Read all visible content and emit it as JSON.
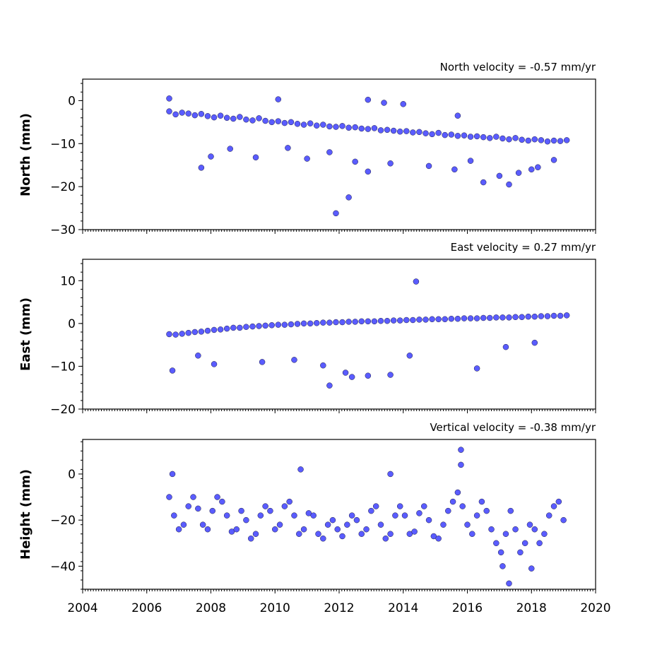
{
  "colors": {
    "marker_fill": "#5a5cff",
    "marker_edge": "#1a1a40",
    "axes": "#000000",
    "background": "#ffffff"
  },
  "chart_data": [
    {
      "type": "scatter",
      "title": "North velocity = -0.57 mm/yr",
      "xlabel": "",
      "ylabel": "North (mm)",
      "xlim": [
        2004,
        2020
      ],
      "ylim": [
        -30,
        5
      ],
      "yticks": [
        0,
        -10,
        -20,
        -30
      ],
      "ytick_labels": [
        "0",
        "−10",
        "−20",
        "−30"
      ],
      "xticks": [
        2004,
        2006,
        2008,
        2010,
        2012,
        2014,
        2016,
        2018,
        2020
      ],
      "xtick_labels": [],
      "grid": false,
      "series": [
        {
          "x": [
            2006.7,
            2006.9,
            2007.1,
            2007.3,
            2007.5,
            2007.7,
            2007.9,
            2008.1,
            2008.3,
            2008.5,
            2008.7,
            2008.9,
            2009.1,
            2009.3,
            2009.5,
            2009.7,
            2009.9,
            2010.1,
            2010.3,
            2010.5,
            2010.7,
            2010.9,
            2011.1,
            2011.3,
            2011.5,
            2011.7,
            2011.9,
            2012.1,
            2012.3,
            2012.5,
            2012.7,
            2012.9,
            2013.1,
            2013.3,
            2013.5,
            2013.7,
            2013.9,
            2014.1,
            2014.3,
            2014.5,
            2014.7,
            2014.9,
            2015.1,
            2015.3,
            2015.5,
            2015.7,
            2015.9,
            2016.1,
            2016.3,
            2016.5,
            2016.7,
            2016.9,
            2017.1,
            2017.3,
            2017.5,
            2017.7,
            2017.9,
            2018.1,
            2018.3,
            2018.5,
            2018.7,
            2018.9,
            2019.1,
            2007.7,
            2008.0,
            2008.6,
            2009.4,
            2010.4,
            2011.0,
            2011.7,
            2011.9,
            2012.3,
            2012.5,
            2012.9,
            2013.6,
            2014.8,
            2015.6,
            2016.1,
            2016.5,
            2017.0,
            2017.3,
            2017.6,
            2018.0,
            2018.2,
            2018.7,
            2006.7,
            2010.1,
            2012.9,
            2013.4,
            2014.0,
            2015.7
          ],
          "y": [
            -2.5,
            -3.2,
            -2.8,
            -3.0,
            -3.4,
            -3.1,
            -3.6,
            -3.9,
            -3.5,
            -4.0,
            -4.2,
            -3.8,
            -4.4,
            -4.6,
            -4.1,
            -4.7,
            -5.0,
            -4.8,
            -5.2,
            -5.0,
            -5.4,
            -5.6,
            -5.3,
            -5.8,
            -5.6,
            -6.0,
            -6.1,
            -5.9,
            -6.3,
            -6.2,
            -6.5,
            -6.6,
            -6.4,
            -6.9,
            -6.8,
            -7.0,
            -7.2,
            -7.1,
            -7.4,
            -7.3,
            -7.6,
            -7.8,
            -7.5,
            -8.0,
            -7.9,
            -8.2,
            -8.1,
            -8.4,
            -8.3,
            -8.5,
            -8.7,
            -8.4,
            -8.8,
            -9.0,
            -8.7,
            -9.1,
            -9.3,
            -9.0,
            -9.2,
            -9.5,
            -9.3,
            -9.4,
            -9.2,
            -15.6,
            -13.0,
            -11.2,
            -13.2,
            -11.0,
            -13.5,
            -12.0,
            -26.2,
            -22.5,
            -14.2,
            -16.5,
            -14.6,
            -15.2,
            -16.0,
            -14.0,
            -19.0,
            -17.5,
            -19.5,
            -16.8,
            -16.0,
            -15.5,
            -13.8,
            0.5,
            0.3,
            0.2,
            -0.5,
            -0.8,
            -3.5
          ]
        }
      ]
    },
    {
      "type": "scatter",
      "title": "East velocity = 0.27 mm/yr",
      "xlabel": "",
      "ylabel": "East (mm)",
      "xlim": [
        2004,
        2020
      ],
      "ylim": [
        -20,
        15
      ],
      "yticks": [
        10,
        0,
        -10,
        -20
      ],
      "ytick_labels": [
        "10",
        "0",
        "−10",
        "−20"
      ],
      "xticks": [
        2004,
        2006,
        2008,
        2010,
        2012,
        2014,
        2016,
        2018,
        2020
      ],
      "xtick_labels": [],
      "grid": false,
      "series": [
        {
          "x": [
            2006.7,
            2006.9,
            2007.1,
            2007.3,
            2007.5,
            2007.7,
            2007.9,
            2008.1,
            2008.3,
            2008.5,
            2008.7,
            2008.9,
            2009.1,
            2009.3,
            2009.5,
            2009.7,
            2009.9,
            2010.1,
            2010.3,
            2010.5,
            2010.7,
            2010.9,
            2011.1,
            2011.3,
            2011.5,
            2011.7,
            2011.9,
            2012.1,
            2012.3,
            2012.5,
            2012.7,
            2012.9,
            2013.1,
            2013.3,
            2013.5,
            2013.7,
            2013.9,
            2014.1,
            2014.3,
            2014.5,
            2014.7,
            2014.9,
            2015.1,
            2015.3,
            2015.5,
            2015.7,
            2015.9,
            2016.1,
            2016.3,
            2016.5,
            2016.7,
            2016.9,
            2017.1,
            2017.3,
            2017.5,
            2017.7,
            2017.9,
            2018.1,
            2018.3,
            2018.5,
            2018.7,
            2018.9,
            2019.1,
            2006.8,
            2007.6,
            2008.1,
            2009.6,
            2010.6,
            2011.5,
            2011.7,
            2012.2,
            2012.4,
            2012.9,
            2013.6,
            2014.2,
            2016.3,
            2014.4,
            2017.2,
            2018.1
          ],
          "y": [
            -2.5,
            -2.6,
            -2.4,
            -2.2,
            -2.0,
            -1.9,
            -1.7,
            -1.5,
            -1.4,
            -1.2,
            -1.0,
            -1.0,
            -0.8,
            -0.7,
            -0.6,
            -0.5,
            -0.4,
            -0.3,
            -0.3,
            -0.2,
            -0.1,
            0.0,
            0.0,
            0.1,
            0.2,
            0.2,
            0.3,
            0.3,
            0.4,
            0.4,
            0.5,
            0.5,
            0.5,
            0.6,
            0.6,
            0.7,
            0.7,
            0.8,
            0.8,
            0.9,
            0.9,
            1.0,
            1.0,
            1.0,
            1.1,
            1.1,
            1.2,
            1.2,
            1.2,
            1.3,
            1.3,
            1.4,
            1.4,
            1.4,
            1.5,
            1.5,
            1.6,
            1.6,
            1.7,
            1.7,
            1.8,
            1.8,
            1.9,
            -11.0,
            -7.5,
            -9.5,
            -9.0,
            -8.5,
            -9.8,
            -14.5,
            -11.5,
            -12.5,
            -12.2,
            -12.0,
            -7.5,
            -10.5,
            9.8,
            -5.5,
            -4.5
          ]
        }
      ]
    },
    {
      "type": "scatter",
      "title": "Vertical velocity = -0.38 mm/yr",
      "xlabel": "",
      "ylabel": "Height (mm)",
      "xlim": [
        2004,
        2020
      ],
      "ylim": [
        -50,
        15
      ],
      "yticks": [
        0,
        -20,
        -40
      ],
      "ytick_labels": [
        "0",
        "−20",
        "−40"
      ],
      "xticks": [
        2004,
        2006,
        2008,
        2010,
        2012,
        2014,
        2016,
        2018,
        2020
      ],
      "xtick_labels": [
        "2004",
        "2006",
        "2008",
        "2010",
        "2012",
        "2014",
        "2016",
        "2018",
        "2020"
      ],
      "grid": false,
      "series": [
        {
          "x": [
            2006.7,
            2006.85,
            2007.0,
            2007.15,
            2007.3,
            2007.45,
            2007.6,
            2007.75,
            2007.9,
            2008.05,
            2008.2,
            2008.35,
            2008.5,
            2008.65,
            2008.8,
            2008.95,
            2009.1,
            2009.25,
            2009.4,
            2009.55,
            2009.7,
            2009.85,
            2010.0,
            2010.15,
            2010.3,
            2010.45,
            2010.6,
            2010.75,
            2010.9,
            2011.05,
            2011.2,
            2011.35,
            2011.5,
            2011.65,
            2011.8,
            2011.95,
            2012.1,
            2012.25,
            2012.4,
            2012.55,
            2012.7,
            2012.85,
            2013.0,
            2013.15,
            2013.3,
            2013.45,
            2013.6,
            2013.75,
            2013.9,
            2014.05,
            2014.2,
            2014.35,
            2014.5,
            2014.65,
            2014.8,
            2014.95,
            2015.1,
            2015.25,
            2015.4,
            2015.55,
            2015.7,
            2015.85,
            2016.0,
            2016.15,
            2016.3,
            2016.45,
            2016.6,
            2016.75,
            2016.9,
            2017.05,
            2017.2,
            2017.35,
            2017.5,
            2017.65,
            2017.8,
            2017.95,
            2018.1,
            2018.25,
            2018.4,
            2018.55,
            2018.7,
            2018.85,
            2019.0,
            2015.8,
            2015.8,
            2017.3,
            2018.0,
            2017.1,
            2010.8,
            2013.6,
            2006.8
          ],
          "y": [
            -10.0,
            -18.0,
            -24.0,
            -22.0,
            -14.0,
            -10.0,
            -15.0,
            -22.0,
            -24.0,
            -16.0,
            -10.0,
            -12.0,
            -18.0,
            -25.0,
            -24.0,
            -16.0,
            -20.0,
            -28.0,
            -26.0,
            -18.0,
            -14.0,
            -16.0,
            -24.0,
            -22.0,
            -14.0,
            -12.0,
            -18.0,
            -26.0,
            -24.0,
            -17.0,
            -18.0,
            -26.0,
            -28.0,
            -22.0,
            -20.0,
            -24.0,
            -27.0,
            -22.0,
            -18.0,
            -20.0,
            -26.0,
            -24.0,
            -16.0,
            -14.0,
            -22.0,
            -28.0,
            -26.0,
            -18.0,
            -14.0,
            -18.0,
            -26.0,
            -25.0,
            -17.0,
            -14.0,
            -20.0,
            -27.0,
            -28.0,
            -22.0,
            -16.0,
            -12.0,
            -8.0,
            -14.0,
            -22.0,
            -26.0,
            -18.0,
            -12.0,
            -16.0,
            -24.0,
            -30.0,
            -34.0,
            -26.0,
            -16.0,
            -24.0,
            -34.0,
            -30.0,
            -22.0,
            -24.0,
            -30.0,
            -26.0,
            -18.0,
            -14.0,
            -12.0,
            -20.0,
            10.5,
            4.0,
            -47.5,
            -41.0,
            -40.0,
            2.0,
            0.0,
            0.0
          ]
        }
      ]
    }
  ]
}
